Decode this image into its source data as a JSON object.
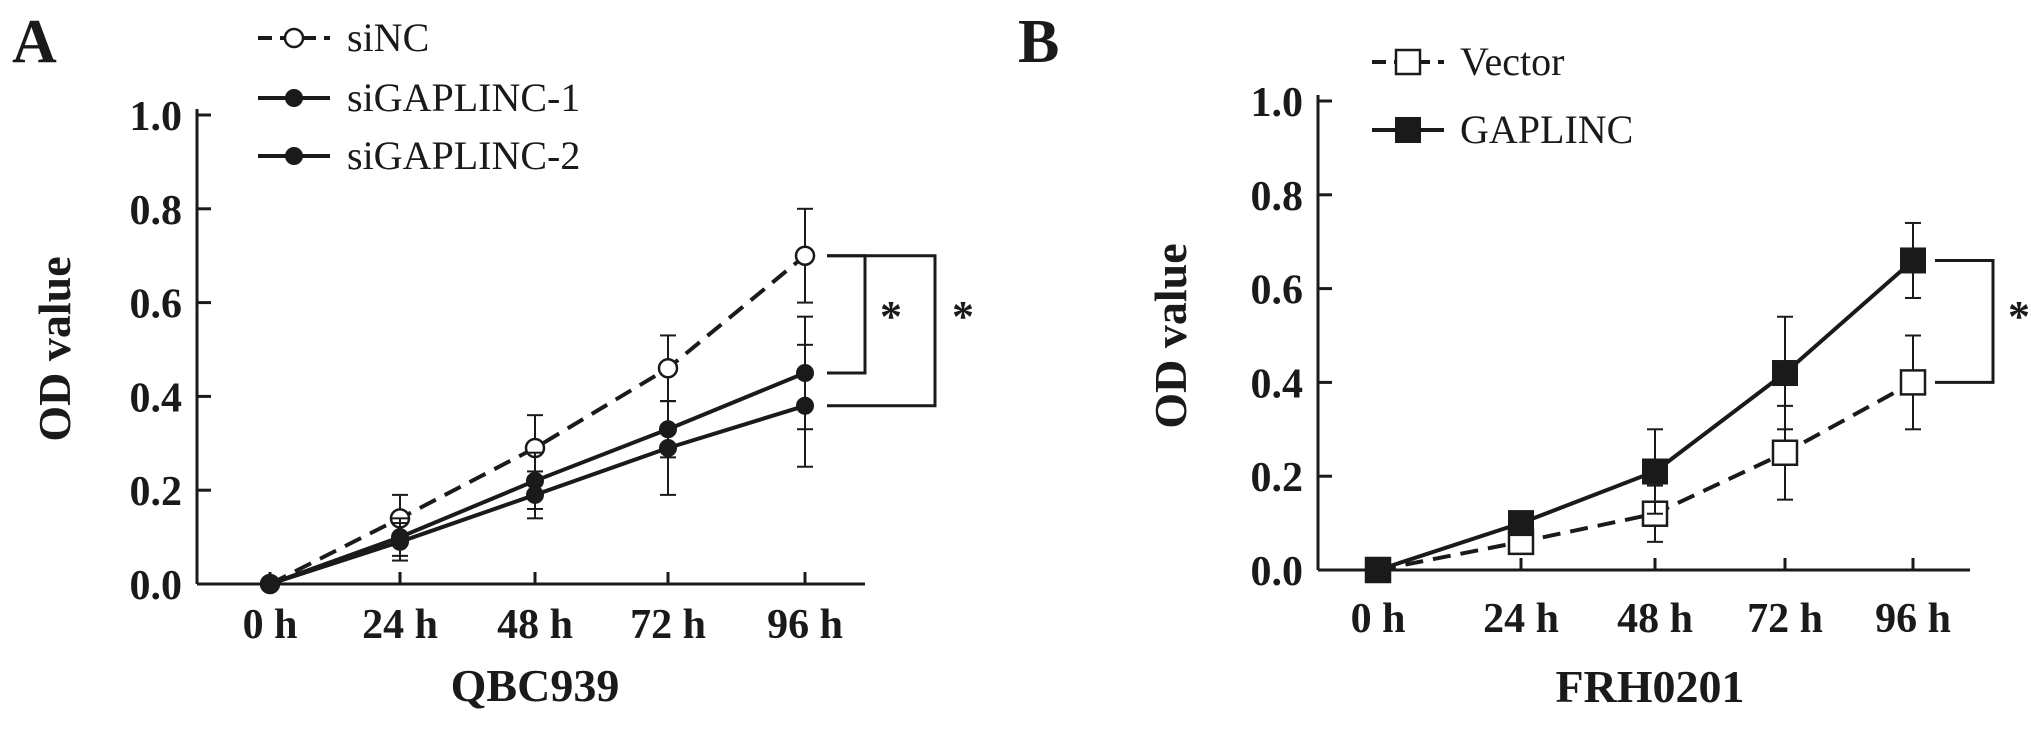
{
  "figure": {
    "panels": [
      {
        "letter": "A",
        "legend": [
          "siNC",
          "siGAPLINC-1",
          "siGAPLINC-2"
        ],
        "significance": [
          "*",
          "*"
        ]
      },
      {
        "letter": "B",
        "legend": [
          "Vector",
          "GAPLINC"
        ],
        "significance": [
          "*"
        ]
      }
    ]
  },
  "chart_data": [
    {
      "type": "line",
      "panel": "A",
      "title": "",
      "xlabel": "QBC939",
      "ylabel": "OD value",
      "categories": [
        "0 h",
        "24 h",
        "48 h",
        "72 h",
        "96 h"
      ],
      "ylim": [
        0,
        1.0
      ],
      "yticks": [
        "0.0",
        "0.2",
        "0.4",
        "0.6",
        "0.8",
        "1.0"
      ],
      "legend_position": "top-left",
      "series": [
        {
          "name": "siNC",
          "values": [
            0.0,
            0.14,
            0.29,
            0.46,
            0.7
          ],
          "errors": [
            0.0,
            0.05,
            0.07,
            0.07,
            0.1
          ],
          "line": "dashed",
          "marker": "open-circle"
        },
        {
          "name": "siGAPLINC-1",
          "values": [
            0.0,
            0.1,
            0.22,
            0.33,
            0.45
          ],
          "errors": [
            0.0,
            0.04,
            0.06,
            0.06,
            0.12
          ],
          "line": "solid",
          "marker": "filled-circle"
        },
        {
          "name": "siGAPLINC-2",
          "values": [
            0.0,
            0.09,
            0.19,
            0.29,
            0.38
          ],
          "errors": [
            0.0,
            0.04,
            0.05,
            0.1,
            0.13
          ],
          "line": "solid",
          "marker": "filled-circle"
        }
      ]
    },
    {
      "type": "line",
      "panel": "B",
      "title": "",
      "xlabel": "FRH0201",
      "ylabel": "OD value",
      "categories": [
        "0 h",
        "24 h",
        "48 h",
        "72 h",
        "96 h"
      ],
      "ylim": [
        0,
        1.0
      ],
      "yticks": [
        "0.0",
        "0.2",
        "0.4",
        "0.6",
        "0.8",
        "1.0"
      ],
      "legend_position": "top-left",
      "series": [
        {
          "name": "Vector",
          "values": [
            0.0,
            0.06,
            0.12,
            0.25,
            0.4
          ],
          "errors": [
            0.0,
            0.02,
            0.06,
            0.1,
            0.1
          ],
          "line": "dashed",
          "marker": "open-square"
        },
        {
          "name": "GAPLINC",
          "values": [
            0.0,
            0.1,
            0.21,
            0.42,
            0.66
          ],
          "errors": [
            0.0,
            0.02,
            0.09,
            0.12,
            0.08
          ],
          "line": "solid",
          "marker": "filled-square"
        }
      ]
    }
  ]
}
